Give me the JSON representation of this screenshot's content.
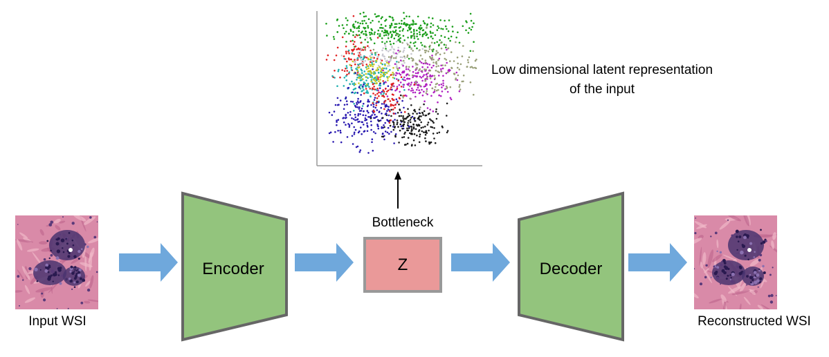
{
  "labels": {
    "input": "Input WSI",
    "reconstructed": "Reconstructed WSI",
    "bottleneck": "Bottleneck",
    "latent": "Low dimensional latent representation of the input",
    "encoder": "Encoder",
    "decoder": "Decoder",
    "z": "Z"
  },
  "colors": {
    "block_green": "#93c47d",
    "block_border": "#666666",
    "z_fill": "#ea9999",
    "z_border": "#999999",
    "arrow_blue": "#6fa8dc",
    "tissue_pink": "#d98aa8",
    "tissue_purple": "#4a3470"
  },
  "icons": {
    "input_image": "histology-tissue-image",
    "output_image": "histology-tissue-image"
  },
  "scatter_clusters": [
    {
      "color": "#1a9e1a"
    },
    {
      "color": "#e02020"
    },
    {
      "color": "#c8c8d0"
    },
    {
      "color": "#20b0b0"
    },
    {
      "color": "#c8c820"
    },
    {
      "color": "#b020c0"
    },
    {
      "color": "#9aa07a"
    },
    {
      "color": "#2a1ab0"
    },
    {
      "color": "#1a1a1a"
    }
  ]
}
